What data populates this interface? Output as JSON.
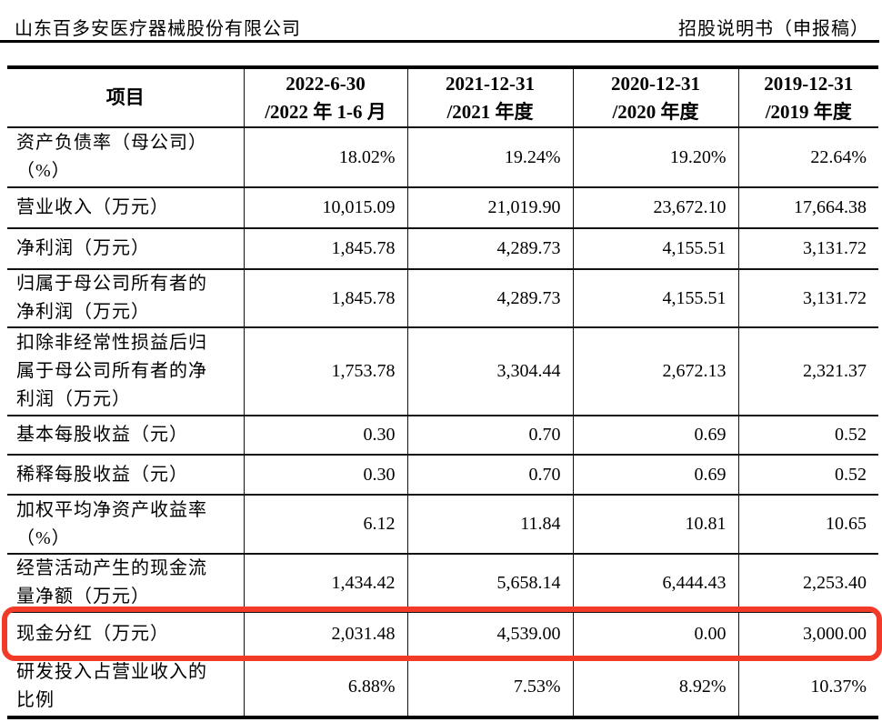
{
  "page_header": {
    "company": "山东百多安医疗器械股份有限公司",
    "doc_title": "招股说明书（申报稿）"
  },
  "table": {
    "columns": [
      "项目",
      "2022-6-30\n/2022 年 1-6 月",
      "2021-12-31\n/2021 年度",
      "2020-12-31\n/2020 年度",
      "2019-12-31\n/2019 年度"
    ],
    "rows": [
      {
        "label": "资产负债率（母公司）\n（%）",
        "values": [
          "18.02%",
          "19.24%",
          "19.20%",
          "22.64%"
        ],
        "highlighted": false
      },
      {
        "label": "营业收入（万元）",
        "values": [
          "10,015.09",
          "21,019.90",
          "23,672.10",
          "17,664.38"
        ],
        "highlighted": false
      },
      {
        "label": "净利润（万元）",
        "values": [
          "1,845.78",
          "4,289.73",
          "4,155.51",
          "3,131.72"
        ],
        "highlighted": false
      },
      {
        "label": "归属于母公司所有者的\n净利润（万元）",
        "values": [
          "1,845.78",
          "4,289.73",
          "4,155.51",
          "3,131.72"
        ],
        "highlighted": false
      },
      {
        "label": "扣除非经常性损益后归\n属于母公司所有者的净\n利润（万元）",
        "values": [
          "1,753.78",
          "3,304.44",
          "2,672.13",
          "2,321.37"
        ],
        "highlighted": false
      },
      {
        "label": "基本每股收益（元）",
        "values": [
          "0.30",
          "0.70",
          "0.69",
          "0.52"
        ],
        "highlighted": false
      },
      {
        "label": "稀释每股收益（元）",
        "values": [
          "0.30",
          "0.70",
          "0.69",
          "0.52"
        ],
        "highlighted": false
      },
      {
        "label": "加权平均净资产收益率\n（%）",
        "values": [
          "6.12",
          "11.84",
          "10.81",
          "10.65"
        ],
        "highlighted": false
      },
      {
        "label": "经营活动产生的现金流\n量净额（万元）",
        "values": [
          "1,434.42",
          "5,658.14",
          "6,444.43",
          "2,253.40"
        ],
        "highlighted": false
      },
      {
        "label": "现金分红（万元）",
        "values": [
          "2,031.48",
          "4,539.00",
          "0.00",
          "3,000.00"
        ],
        "highlighted": true
      },
      {
        "label": "研发投入占营业收入的\n比例",
        "values": [
          "6.88%",
          "7.53%",
          "8.92%",
          "10.37%"
        ],
        "highlighted": false
      }
    ]
  },
  "highlight": {
    "color": "#f23a28"
  }
}
